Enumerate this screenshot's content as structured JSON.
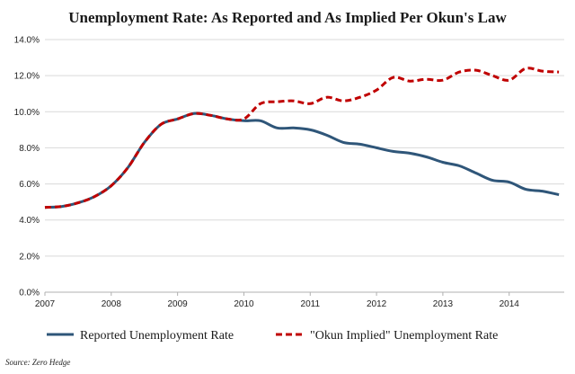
{
  "chart_data": {
    "type": "line",
    "title": "Unemployment Rate: As Reported and As Implied Per Okun's Law",
    "ylim": [
      0,
      14
    ],
    "xlim": [
      2007.0,
      2014.83
    ],
    "y_ticks": [
      "0.0%",
      "2.0%",
      "4.0%",
      "6.0%",
      "8.0%",
      "10.0%",
      "12.0%",
      "14.0%"
    ],
    "y_tick_values": [
      0,
      2,
      4,
      6,
      8,
      10,
      12,
      14
    ],
    "x_ticks": [
      "2007",
      "2008",
      "2009",
      "2010",
      "2011",
      "2012",
      "2013",
      "2014"
    ],
    "x_tick_values": [
      2007,
      2008,
      2009,
      2010,
      2011,
      2012,
      2013,
      2014
    ],
    "grid": "horizontal",
    "legend_position": "bottom",
    "series": [
      {
        "name": "Reported Unemployment Rate",
        "color": "#2f5679",
        "style": "solid",
        "points": [
          [
            2007.0,
            4.7
          ],
          [
            2007.25,
            4.75
          ],
          [
            2007.5,
            4.95
          ],
          [
            2007.75,
            5.3
          ],
          [
            2008.0,
            5.9
          ],
          [
            2008.25,
            6.9
          ],
          [
            2008.5,
            8.3
          ],
          [
            2008.75,
            9.3
          ],
          [
            2009.0,
            9.6
          ],
          [
            2009.25,
            9.9
          ],
          [
            2009.5,
            9.8
          ],
          [
            2009.75,
            9.6
          ],
          [
            2010.0,
            9.5
          ],
          [
            2010.25,
            9.5
          ],
          [
            2010.5,
            9.1
          ],
          [
            2010.75,
            9.1
          ],
          [
            2011.0,
            9.0
          ],
          [
            2011.25,
            8.7
          ],
          [
            2011.5,
            8.3
          ],
          [
            2011.75,
            8.2
          ],
          [
            2012.0,
            8.0
          ],
          [
            2012.25,
            7.8
          ],
          [
            2012.5,
            7.7
          ],
          [
            2012.75,
            7.5
          ],
          [
            2013.0,
            7.2
          ],
          [
            2013.25,
            7.0
          ],
          [
            2013.5,
            6.6
          ],
          [
            2013.75,
            6.2
          ],
          [
            2014.0,
            6.1
          ],
          [
            2014.25,
            5.7
          ],
          [
            2014.5,
            5.6
          ],
          [
            2014.75,
            5.4
          ]
        ]
      },
      {
        "name": "\"Okun Implied\" Unemployment Rate",
        "color": "#c00000",
        "style": "dashed",
        "points": [
          [
            2007.0,
            4.7
          ],
          [
            2007.25,
            4.75
          ],
          [
            2007.5,
            4.95
          ],
          [
            2007.75,
            5.3
          ],
          [
            2008.0,
            5.9
          ],
          [
            2008.25,
            6.9
          ],
          [
            2008.5,
            8.3
          ],
          [
            2008.75,
            9.3
          ],
          [
            2009.0,
            9.6
          ],
          [
            2009.25,
            9.9
          ],
          [
            2009.5,
            9.8
          ],
          [
            2009.75,
            9.6
          ],
          [
            2010.0,
            9.6
          ],
          [
            2010.25,
            10.45
          ],
          [
            2010.5,
            10.55
          ],
          [
            2010.75,
            10.6
          ],
          [
            2011.0,
            10.45
          ],
          [
            2011.25,
            10.8
          ],
          [
            2011.5,
            10.6
          ],
          [
            2011.75,
            10.8
          ],
          [
            2012.0,
            11.2
          ],
          [
            2012.25,
            11.9
          ],
          [
            2012.5,
            11.7
          ],
          [
            2012.75,
            11.8
          ],
          [
            2013.0,
            11.75
          ],
          [
            2013.25,
            12.2
          ],
          [
            2013.5,
            12.3
          ],
          [
            2013.75,
            12.0
          ],
          [
            2014.0,
            11.75
          ],
          [
            2014.25,
            12.4
          ],
          [
            2014.5,
            12.25
          ],
          [
            2014.75,
            12.2
          ]
        ]
      }
    ]
  },
  "source": "Source: Zero Hedge"
}
